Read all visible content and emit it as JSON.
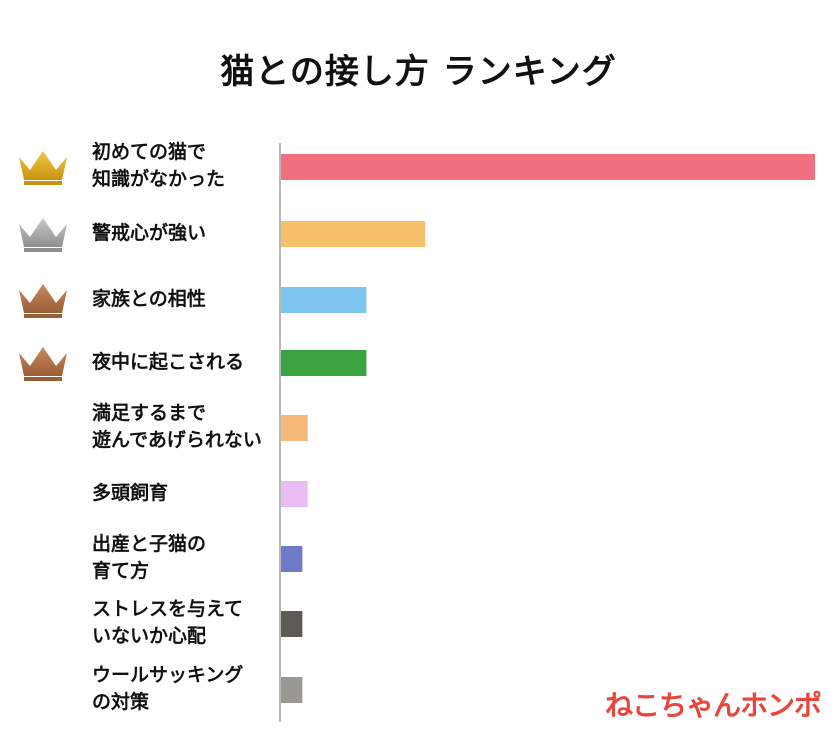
{
  "chart_data": {
    "type": "bar",
    "orientation": "horizontal",
    "title": "猫との接し方 ランキング",
    "categories": [
      [
        "初めての猫で",
        "知識がなかった"
      ],
      [
        "警戒心が強い"
      ],
      [
        "家族との相性"
      ],
      [
        "夜中に起こされる"
      ],
      [
        "満足するまで",
        "遊んであげられない"
      ],
      [
        "多頭飼育"
      ],
      [
        "出産と子猫の",
        "育て方"
      ],
      [
        "ストレスを与えて",
        "いないか心配"
      ],
      [
        "ウールサッキング",
        "の対策"
      ]
    ],
    "values": [
      100,
      27,
      16,
      16,
      5,
      5,
      4,
      4,
      4
    ],
    "ranks": [
      "gold",
      "silver",
      "bronze",
      "bronze",
      null,
      null,
      null,
      null,
      null
    ],
    "bar_colors": [
      "#f07080",
      "#f7c06b",
      "#7dc4ef",
      "#3aa33f",
      "#f6b879",
      "#e9bdf4",
      "#6e79c7",
      "#5e5a55",
      "#9a9893"
    ],
    "crown_colors": {
      "gold": [
        "#f3c845",
        "#c8930f"
      ],
      "silver": [
        "#c9c9c9",
        "#8f8f8f"
      ],
      "bronze": [
        "#c98a5e",
        "#9a5e35"
      ]
    },
    "axis_color": "#b8b8b8",
    "xlim": [
      0,
      100
    ],
    "grid": false,
    "legend": "none"
  },
  "watermark": "ねこちゃんホンポ"
}
